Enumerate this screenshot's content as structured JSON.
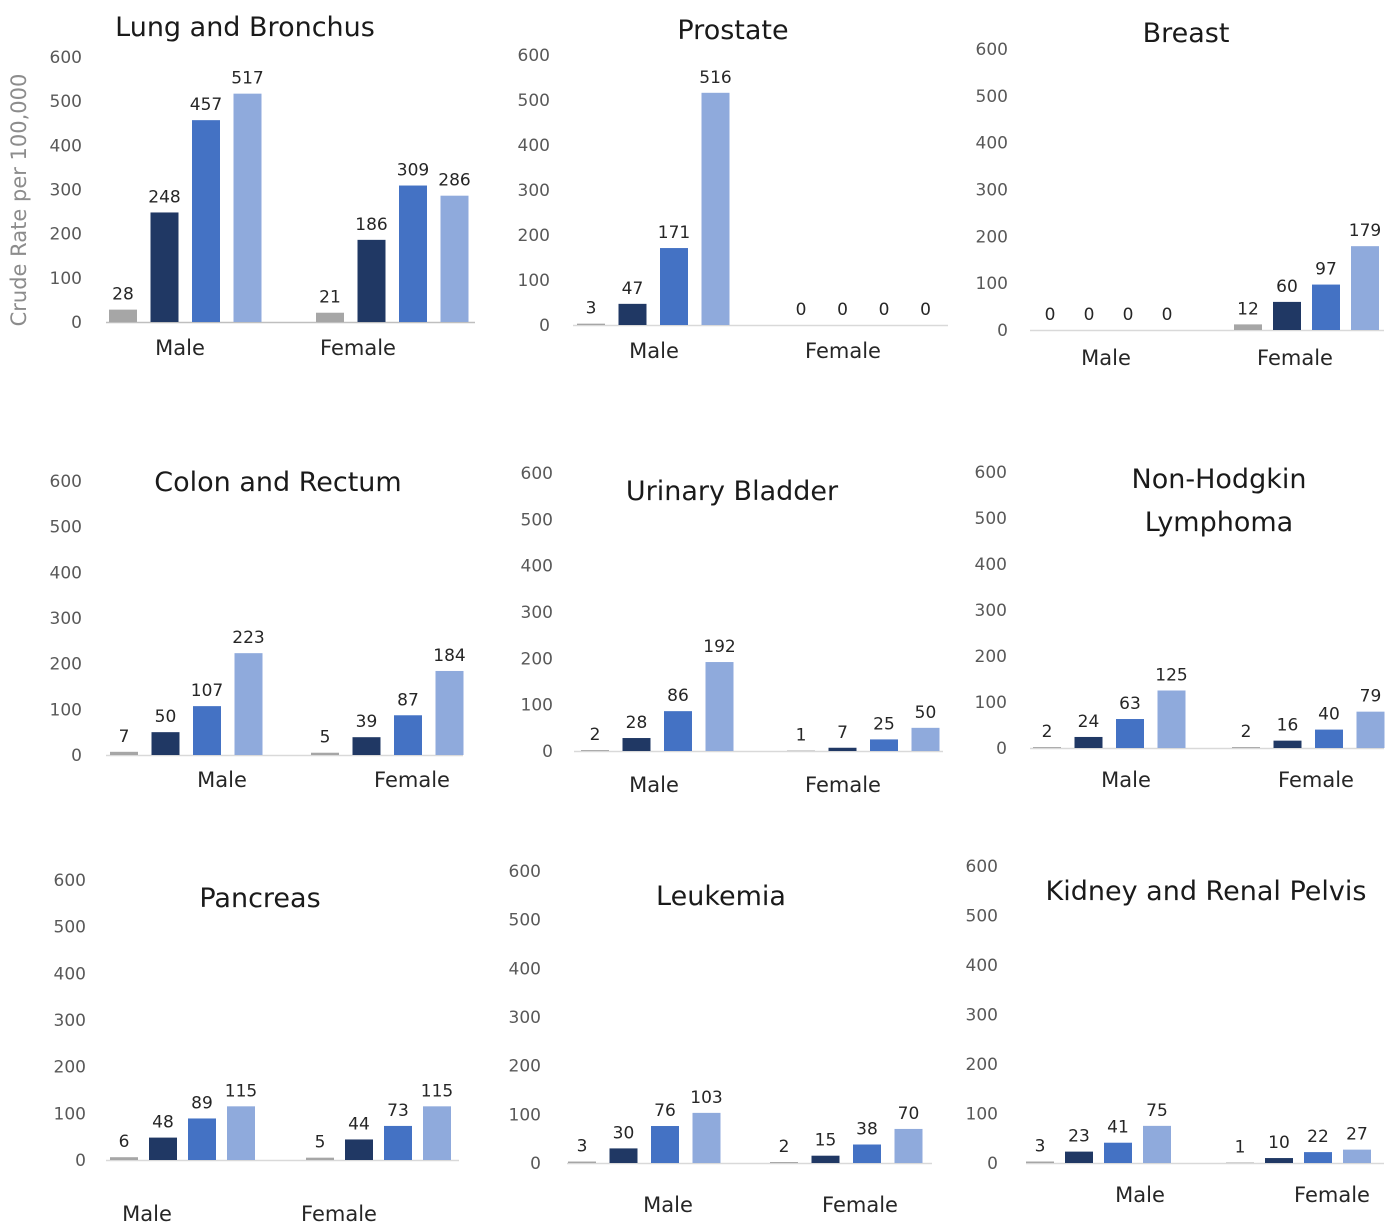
{
  "figure": {
    "ylabel": "Crude Rate per 100,000",
    "series_colors": [
      "#a6a6a6",
      "#203864",
      "#4472c4",
      "#8faadc"
    ]
  },
  "chart_data": [
    {
      "type": "bar",
      "title": "Lung and Bronchus",
      "categories": [
        "Male",
        "Female"
      ],
      "ylim": [
        0,
        600
      ],
      "yticks": [
        0,
        100,
        200,
        300,
        400,
        500,
        600
      ],
      "values": [
        [
          28,
          248,
          457,
          517
        ],
        [
          21,
          186,
          309,
          286
        ]
      ]
    },
    {
      "type": "bar",
      "title": "Prostate",
      "categories": [
        "Male",
        "Female"
      ],
      "ylim": [
        0,
        600
      ],
      "yticks": [
        0,
        100,
        200,
        300,
        400,
        500,
        600
      ],
      "values": [
        [
          3,
          47,
          171,
          516
        ],
        [
          0,
          0,
          0,
          0
        ]
      ]
    },
    {
      "type": "bar",
      "title": "Breast",
      "categories": [
        "Male",
        "Female"
      ],
      "ylim": [
        0,
        600
      ],
      "yticks": [
        0,
        100,
        200,
        300,
        400,
        500,
        600
      ],
      "values": [
        [
          0,
          0,
          0,
          0
        ],
        [
          12,
          60,
          97,
          179
        ]
      ]
    },
    {
      "type": "bar",
      "title": "Colon and Rectum",
      "categories": [
        "Male",
        "Female"
      ],
      "ylim": [
        0,
        600
      ],
      "yticks": [
        0,
        100,
        200,
        300,
        400,
        500,
        600
      ],
      "values": [
        [
          7,
          50,
          107,
          223
        ],
        [
          5,
          39,
          87,
          184
        ]
      ]
    },
    {
      "type": "bar",
      "title": "Urinary Bladder",
      "categories": [
        "Male",
        "Female"
      ],
      "ylim": [
        0,
        600
      ],
      "yticks": [
        0,
        100,
        200,
        300,
        400,
        500,
        600
      ],
      "values": [
        [
          2,
          28,
          86,
          192
        ],
        [
          1,
          7,
          25,
          50
        ]
      ]
    },
    {
      "type": "bar",
      "title": "Non-Hodgkin Lymphoma",
      "title_lines": [
        "Non-Hodgkin",
        "Lymphoma"
      ],
      "categories": [
        "Male",
        "Female"
      ],
      "ylim": [
        0,
        600
      ],
      "yticks": [
        0,
        100,
        200,
        300,
        400,
        500,
        600
      ],
      "values": [
        [
          2,
          24,
          63,
          125
        ],
        [
          2,
          16,
          40,
          79
        ]
      ]
    },
    {
      "type": "bar",
      "title": "Pancreas",
      "categories": [
        "Male",
        "Female"
      ],
      "ylim": [
        0,
        600
      ],
      "yticks": [
        0,
        100,
        200,
        300,
        400,
        500,
        600
      ],
      "values": [
        [
          6,
          48,
          89,
          115
        ],
        [
          5,
          44,
          73,
          115
        ]
      ]
    },
    {
      "type": "bar",
      "title": "Leukemia",
      "categories": [
        "Male",
        "Female"
      ],
      "ylim": [
        0,
        600
      ],
      "yticks": [
        0,
        100,
        200,
        300,
        400,
        500,
        600
      ],
      "values": [
        [
          3,
          30,
          76,
          103
        ],
        [
          2,
          15,
          38,
          70
        ]
      ]
    },
    {
      "type": "bar",
      "title": "Kidney and Renal Pelvis",
      "categories": [
        "Male",
        "Female"
      ],
      "ylim": [
        0,
        600
      ],
      "yticks": [
        0,
        100,
        200,
        300,
        400,
        500,
        600
      ],
      "values": [
        [
          3,
          23,
          41,
          75
        ],
        [
          1,
          10,
          22,
          27
        ]
      ]
    }
  ]
}
